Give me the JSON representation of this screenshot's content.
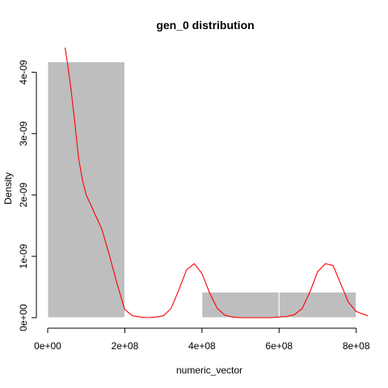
{
  "chart_data": {
    "type": "bar",
    "title": "gen_0 distribution",
    "xlabel": "numeric_vector",
    "ylabel": "Density",
    "xlim": [
      0,
      830000000
    ],
    "ylim": [
      0,
      4.4e-09
    ],
    "x_ticks": [
      {
        "value": 0,
        "label": "0e+00"
      },
      {
        "value": 200000000,
        "label": "2e+08"
      },
      {
        "value": 400000000,
        "label": "4e+08"
      },
      {
        "value": 600000000,
        "label": "6e+08"
      },
      {
        "value": 800000000,
        "label": "8e+08"
      }
    ],
    "y_ticks": [
      {
        "value": 0,
        "label": "0e+00"
      },
      {
        "value": 1e-09,
        "label": "1e-09"
      },
      {
        "value": 2e-09,
        "label": "2e-09"
      },
      {
        "value": 3e-09,
        "label": "3e-09"
      },
      {
        "value": 4e-09,
        "label": "4e-09"
      }
    ],
    "bins": [
      {
        "start": 0,
        "end": 200000000,
        "density": 4.17e-09
      },
      {
        "start": 200000000,
        "end": 400000000,
        "density": 0
      },
      {
        "start": 400000000,
        "end": 600000000,
        "density": 4.17e-10
      },
      {
        "start": 600000000,
        "end": 800000000,
        "density": 4.17e-10
      }
    ],
    "series": [
      {
        "type": "line",
        "color": "#ff0000",
        "x": [
          45000000,
          50000000,
          60000000,
          70000000,
          80000000,
          90000000,
          100000000,
          120000000,
          140000000,
          160000000,
          180000000,
          200000000,
          220000000,
          240000000,
          260000000,
          280000000,
          300000000,
          320000000,
          340000000,
          360000000,
          380000000,
          400000000,
          420000000,
          440000000,
          460000000,
          480000000,
          500000000,
          520000000,
          540000000,
          560000000,
          580000000,
          600000000,
          620000000,
          640000000,
          660000000,
          680000000,
          700000000,
          720000000,
          740000000,
          760000000,
          780000000,
          800000000,
          830000000
        ],
        "y": [
          4.4e-09,
          4.2e-09,
          3.75e-09,
          3.2e-09,
          2.6e-09,
          2.25e-09,
          2e-09,
          1.72e-09,
          1.45e-09,
          1.02e-09,
          5.5e-10,
          1.3e-10,
          3e-11,
          1e-11,
          0.0,
          1e-11,
          3e-11,
          1.5e-10,
          4.5e-10,
          7.8e-10,
          8.8e-10,
          7.2e-10,
          4e-10,
          1.5e-10,
          4e-11,
          1e-11,
          0.0,
          0.0,
          0.0,
          0.0,
          0.0,
          1e-11,
          2e-11,
          5e-11,
          1.5e-10,
          4.2e-10,
          7.5e-10,
          8.8e-10,
          8.5e-10,
          5.5e-10,
          2.5e-10,
          1e-10,
          3e-11
        ]
      }
    ]
  }
}
